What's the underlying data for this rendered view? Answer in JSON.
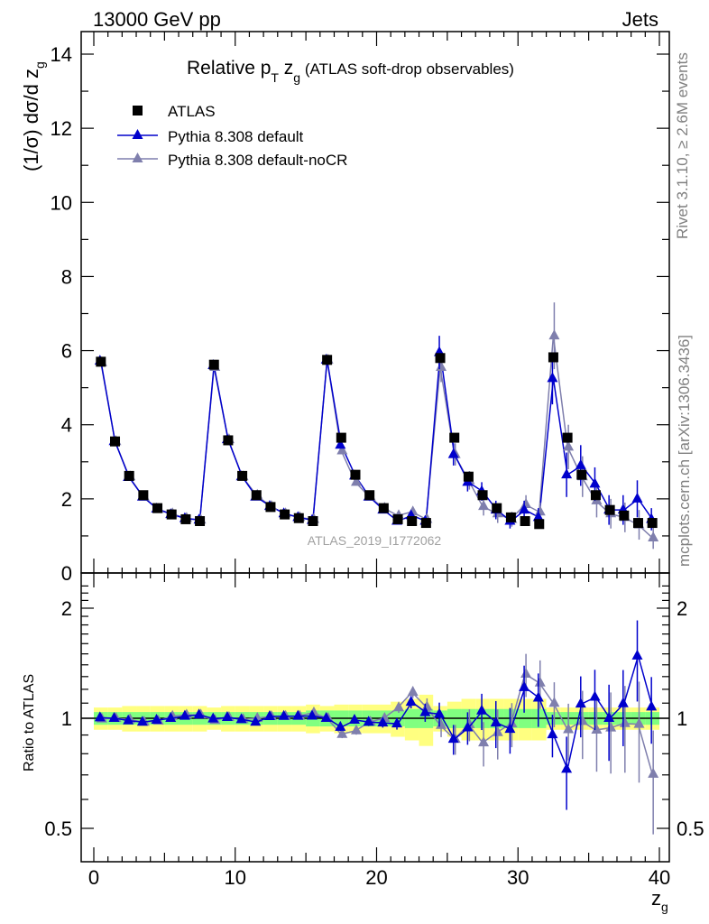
{
  "header": {
    "left": "13000 GeV pp",
    "right": "Jets"
  },
  "side_labels": {
    "rivet": "Rivet 3.1.10, ≥ 2.6M events",
    "mcplots": "mcplots.cern.ch [arXiv:1306.3436]"
  },
  "analysis_id": "ATLAS_2019_I1772062",
  "chart_data": {
    "type": "scatter",
    "title_parts": {
      "a": "Relative p",
      "sub_t": "T",
      "b": " z",
      "sub_g": "g",
      "c": " (ATLAS soft-drop observables)"
    },
    "ylabel_parts": {
      "a": "(1/σ) dσ/d z",
      "sub": "g"
    },
    "xlabel_parts": {
      "a": "z",
      "sub": "g"
    },
    "ratio_ylabel": "Ratio to ATLAS",
    "xlim": [
      -1,
      40
    ],
    "ylim": [
      0,
      14.6
    ],
    "ratio_ylim": [
      0.35,
      2.35
    ],
    "x_ticks": [
      "0",
      "10",
      "20",
      "30",
      "40"
    ],
    "y_ticks": [
      "0",
      "2",
      "4",
      "6",
      "8",
      "10",
      "12",
      "14"
    ],
    "ratio_ticks": [
      "0.5",
      "1",
      "2"
    ],
    "legend_placement": "top-left",
    "colors": {
      "data": "#000000",
      "default": "#0000cc",
      "nocr": "#7f7fad",
      "band_inner": "#80ff80",
      "band_outer": "#ffff80"
    },
    "x": [
      0.5,
      1.5,
      2.5,
      3.5,
      4.5,
      5.5,
      6.5,
      7.5,
      8.5,
      9.5,
      10.5,
      11.5,
      12.5,
      13.5,
      14.5,
      15.5,
      16.5,
      17.5,
      18.5,
      19.5,
      20.5,
      21.5,
      22.5,
      23.5,
      24.5,
      25.5,
      26.5,
      27.5,
      28.5,
      29.5,
      30.5,
      31.5,
      32.5,
      33.5,
      34.5,
      35.5,
      36.5,
      37.5,
      38.5,
      39.5
    ],
    "series": [
      {
        "name": "ATLAS",
        "values": [
          5.7,
          3.55,
          2.62,
          2.1,
          1.75,
          1.58,
          1.45,
          1.4,
          5.62,
          3.58,
          2.62,
          2.1,
          1.78,
          1.58,
          1.48,
          1.4,
          5.75,
          3.65,
          2.65,
          2.1,
          1.75,
          1.45,
          1.4,
          1.35,
          5.8,
          3.65,
          2.6,
          2.1,
          1.75,
          1.5,
          1.4,
          1.32,
          5.82,
          3.65,
          2.65,
          2.1,
          1.7,
          1.55,
          1.35,
          1.35
        ]
      },
      {
        "name": "Pythia 8.308 default",
        "values": [
          5.72,
          3.55,
          2.58,
          2.05,
          1.73,
          1.58,
          1.47,
          1.43,
          5.6,
          3.6,
          2.6,
          2.05,
          1.8,
          1.6,
          1.5,
          1.42,
          5.75,
          3.45,
          2.62,
          2.05,
          1.7,
          1.4,
          1.55,
          1.4,
          5.95,
          3.2,
          2.45,
          2.2,
          1.7,
          1.4,
          1.7,
          1.5,
          5.25,
          2.65,
          2.9,
          2.4,
          1.7,
          1.7,
          2.0,
          1.45
        ]
      },
      {
        "name": "Pythia 8.308 default-noCR",
        "values": [
          5.68,
          3.55,
          2.6,
          2.05,
          1.72,
          1.6,
          1.48,
          1.43,
          5.55,
          3.6,
          2.6,
          2.1,
          1.8,
          1.6,
          1.5,
          1.45,
          5.75,
          3.3,
          2.45,
          2.05,
          1.75,
          1.55,
          1.65,
          1.45,
          5.55,
          3.2,
          2.5,
          1.8,
          1.6,
          1.45,
          1.85,
          1.65,
          6.4,
          3.4,
          2.6,
          1.95,
          1.6,
          1.5,
          1.3,
          0.95
        ]
      }
    ],
    "errors": {
      "default": [
        0.03,
        0.03,
        0.03,
        0.03,
        0.03,
        0.03,
        0.03,
        0.03,
        0.08,
        0.05,
        0.04,
        0.03,
        0.03,
        0.03,
        0.03,
        0.03,
        0.1,
        0.08,
        0.06,
        0.05,
        0.05,
        0.05,
        0.06,
        0.08,
        0.45,
        0.3,
        0.25,
        0.25,
        0.25,
        0.2,
        0.25,
        0.25,
        0.7,
        0.6,
        0.55,
        0.45,
        0.4,
        0.4,
        0.5,
        0.3
      ],
      "nocr": [
        0.03,
        0.03,
        0.03,
        0.03,
        0.03,
        0.03,
        0.03,
        0.03,
        0.08,
        0.05,
        0.04,
        0.03,
        0.03,
        0.03,
        0.03,
        0.03,
        0.1,
        0.08,
        0.06,
        0.05,
        0.05,
        0.05,
        0.06,
        0.08,
        0.4,
        0.3,
        0.25,
        0.25,
        0.25,
        0.2,
        0.25,
        0.25,
        0.9,
        0.6,
        0.55,
        0.45,
        0.4,
        0.4,
        0.4,
        0.3
      ]
    },
    "ratio_band": {
      "inner": [
        0.04,
        0.04,
        0.04,
        0.04,
        0.04,
        0.04,
        0.04,
        0.04,
        0.04,
        0.04,
        0.04,
        0.04,
        0.04,
        0.04,
        0.04,
        0.05,
        0.05,
        0.05,
        0.05,
        0.05,
        0.05,
        0.05,
        0.06,
        0.06,
        0.05,
        0.06,
        0.06,
        0.06,
        0.06,
        0.06,
        0.06,
        0.06,
        0.04,
        0.04,
        0.04,
        0.04,
        0.04,
        0.04,
        0.04,
        0.04
      ],
      "outer": [
        0.07,
        0.07,
        0.08,
        0.08,
        0.08,
        0.08,
        0.08,
        0.08,
        0.07,
        0.08,
        0.08,
        0.08,
        0.08,
        0.08,
        0.08,
        0.09,
        0.08,
        0.09,
        0.09,
        0.09,
        0.09,
        0.11,
        0.13,
        0.16,
        0.08,
        0.11,
        0.13,
        0.13,
        0.13,
        0.13,
        0.13,
        0.13,
        0.07,
        0.07,
        0.07,
        0.07,
        0.07,
        0.07,
        0.07,
        0.07
      ]
    }
  }
}
